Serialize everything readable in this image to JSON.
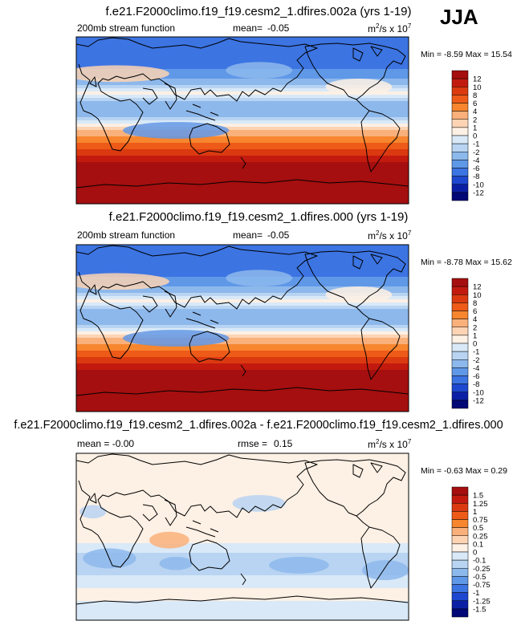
{
  "season": "JJA",
  "variable": "200mb stream function",
  "units_base": "m",
  "units_sup": "2",
  "units_mid": "/s x 10",
  "units_exp": "7",
  "panels": [
    {
      "title": "f.e21.F2000climo.f19_f19.cesm2_1.dfires.002a (yrs 1-19)",
      "left_label": "200mb stream function",
      "stat_label": "mean=",
      "stat_value": "-0.05",
      "min_max": "Min = -8.59 Max = 15.54"
    },
    {
      "title": "f.e21.F2000climo.f19_f19.cesm2_1.dfires.000 (yrs 1-19)",
      "left_label": "200mb stream function",
      "stat_label": "mean=",
      "stat_value": "-0.05",
      "min_max": "Min = -8.78 Max = 15.62"
    },
    {
      "title": "f.e21.F2000climo.f19_f19.cesm2_1.dfires.002a - f.e21.F2000climo.f19_f19.cesm2_1.dfires.000",
      "left_label": "mean = -0.00",
      "stat_label": "rmse =",
      "stat_value": "0.15",
      "min_max": "Min = -0.63 Max = 0.29"
    }
  ],
  "chart_data": [
    {
      "type": "heatmap",
      "title": "f.e21.F2000climo.f19_f19.cesm2_1.dfires.002a (yrs 1-19)",
      "variable": "200mb stream function",
      "units": "m2/s x 10^7",
      "mean": -0.05,
      "min": -8.59,
      "max": 15.54,
      "colorbar_ticks": [
        "12",
        "10",
        "8",
        "6",
        "4",
        "2",
        "1",
        "0",
        "-1",
        "-2",
        "-4",
        "-6",
        "-8",
        "-10",
        "-12"
      ],
      "colors": [
        "#a50f0f",
        "#c21a0f",
        "#db3a10",
        "#ee5a18",
        "#f7862e",
        "#fab07a",
        "#fcd4b4",
        "#fdf0e4",
        "#d9e9f8",
        "#b8d4f2",
        "#8db8ec",
        "#6098e8",
        "#3c74e2",
        "#1e48cf",
        "#0b1fa5",
        "#020875"
      ],
      "latitude_profile": [
        {
          "lat": 90,
          "value": -6
        },
        {
          "lat": 75,
          "value": -8
        },
        {
          "lat": 60,
          "value": -7
        },
        {
          "lat": 45,
          "value": -4
        },
        {
          "lat": 30,
          "value": 0.5
        },
        {
          "lat": 20,
          "value": -2
        },
        {
          "lat": 10,
          "value": -3
        },
        {
          "lat": 0,
          "value": -1
        },
        {
          "lat": -15,
          "value": 3
        },
        {
          "lat": -30,
          "value": 8
        },
        {
          "lat": -45,
          "value": 12
        },
        {
          "lat": -60,
          "value": 14
        },
        {
          "lat": -90,
          "value": 15
        }
      ]
    },
    {
      "type": "heatmap",
      "title": "f.e21.F2000climo.f19_f19.cesm2_1.dfires.000 (yrs 1-19)",
      "variable": "200mb stream function",
      "units": "m2/s x 10^7",
      "mean": -0.05,
      "min": -8.78,
      "max": 15.62,
      "colorbar_ticks": [
        "12",
        "10",
        "8",
        "6",
        "4",
        "2",
        "1",
        "0",
        "-1",
        "-2",
        "-4",
        "-6",
        "-8",
        "-10",
        "-12"
      ],
      "colors": [
        "#a50f0f",
        "#c21a0f",
        "#db3a10",
        "#ee5a18",
        "#f7862e",
        "#fab07a",
        "#fcd4b4",
        "#fdf0e4",
        "#d9e9f8",
        "#b8d4f2",
        "#8db8ec",
        "#6098e8",
        "#3c74e2",
        "#1e48cf",
        "#0b1fa5",
        "#020875"
      ],
      "latitude_profile": [
        {
          "lat": 90,
          "value": -6
        },
        {
          "lat": 75,
          "value": -8
        },
        {
          "lat": 60,
          "value": -7
        },
        {
          "lat": 45,
          "value": -4
        },
        {
          "lat": 30,
          "value": 0.5
        },
        {
          "lat": 20,
          "value": -2
        },
        {
          "lat": 10,
          "value": -3
        },
        {
          "lat": 0,
          "value": -1
        },
        {
          "lat": -15,
          "value": 3
        },
        {
          "lat": -30,
          "value": 8
        },
        {
          "lat": -45,
          "value": 12
        },
        {
          "lat": -60,
          "value": 14
        },
        {
          "lat": -90,
          "value": 15
        }
      ]
    },
    {
      "type": "heatmap",
      "title": "f.e21.F2000climo.f19_f19.cesm2_1.dfires.002a - f.e21.F2000climo.f19_f19.cesm2_1.dfires.000",
      "variable": "200mb stream function difference",
      "units": "m2/s x 10^7",
      "mean": -0.0,
      "rmse": 0.15,
      "min": -0.63,
      "max": 0.29,
      "colorbar_ticks": [
        "1.5",
        "1.25",
        "1",
        "0.75",
        "0.5",
        "0.25",
        "0.1",
        "0",
        "-0.1",
        "-0.25",
        "-0.5",
        "-0.75",
        "-1",
        "-1.25",
        "-1.5"
      ],
      "colors": [
        "#a50f0f",
        "#c21a0f",
        "#db3a10",
        "#ee5a18",
        "#f7862e",
        "#fab07a",
        "#fcd4b4",
        "#fdf0e4",
        "#d9e9f8",
        "#b8d4f2",
        "#8db8ec",
        "#6098e8",
        "#3c74e2",
        "#1e48cf",
        "#0b1fa5",
        "#020875"
      ],
      "latitude_profile": [
        {
          "lat": 90,
          "value": 0.05
        },
        {
          "lat": 60,
          "value": 0.08
        },
        {
          "lat": 30,
          "value": 0.1
        },
        {
          "lat": 0,
          "value": 0.05
        },
        {
          "lat": -30,
          "value": -0.2
        },
        {
          "lat": -60,
          "value": 0.05
        },
        {
          "lat": -90,
          "value": -0.1
        }
      ]
    }
  ]
}
